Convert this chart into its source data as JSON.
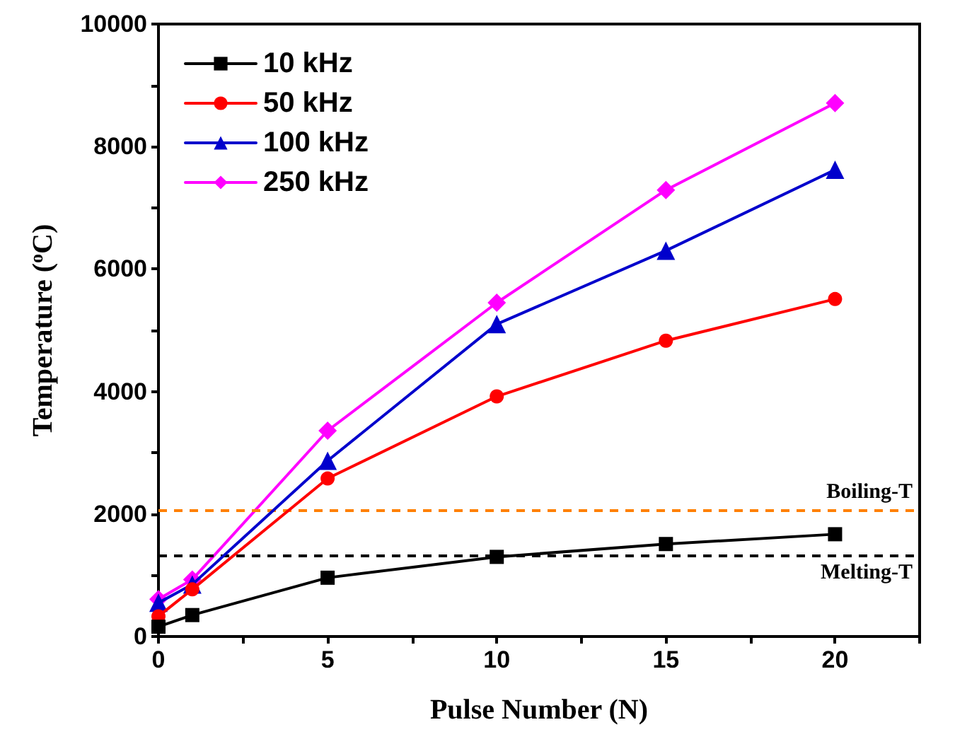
{
  "chart_data": {
    "type": "line",
    "xlabel": "Pulse Number (N)",
    "ylabel": "Temperature ($^{o}$C)",
    "x": [
      0,
      1,
      5,
      10,
      15,
      20
    ],
    "xlim": [
      0,
      22.5
    ],
    "xticks": [
      0,
      {
        "value": 2.5,
        "label": null
      },
      5,
      {
        "value": 7.5,
        "label": null
      },
      10,
      {
        "value": 12.5,
        "label": null
      },
      15,
      {
        "value": 17.5,
        "label": null
      },
      20,
      {
        "value": 22.5,
        "label": null
      }
    ],
    "ylim": [
      0,
      10000
    ],
    "yticks": [
      0,
      {
        "value": 1000,
        "label": null
      },
      2000,
      {
        "value": 3000,
        "label": null
      },
      4000,
      {
        "value": 5000,
        "label": null
      },
      6000,
      {
        "value": 7000,
        "label": null
      },
      8000,
      {
        "value": 9000,
        "label": null
      },
      10000
    ],
    "series": [
      {
        "name": "10 kHz",
        "color": "#000000",
        "marker": "square",
        "values": [
          160,
          350,
          960,
          1300,
          1510,
          1670
        ]
      },
      {
        "name": "50 kHz",
        "color": "#ff0000",
        "marker": "circle",
        "values": [
          330,
          770,
          2580,
          3920,
          4830,
          5510
        ]
      },
      {
        "name": "100 kHz",
        "color": "#0000cc",
        "marker": "triangle",
        "values": [
          550,
          850,
          2870,
          5100,
          6300,
          7620
        ]
      },
      {
        "name": "250 kHz",
        "color": "#ff00ff",
        "marker": "diamond",
        "values": [
          610,
          930,
          3360,
          5450,
          7290,
          8710
        ]
      }
    ],
    "ref_lines": [
      {
        "axis": "y",
        "value": 2070,
        "label": "Boiling-T",
        "color": "#ff8000",
        "line_style": "dashed"
      },
      {
        "axis": "y",
        "value": 1330,
        "label": "Melting-T",
        "color": "#000000",
        "line_style": "dashed"
      }
    ],
    "legend": "top left",
    "grid": false,
    "line_style": "solid"
  }
}
